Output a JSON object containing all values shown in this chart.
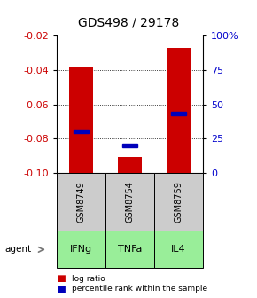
{
  "title": "GDS498 / 29178",
  "samples": [
    "GSM8749",
    "GSM8754",
    "GSM8759"
  ],
  "agents": [
    "IFNg",
    "TNFa",
    "IL4"
  ],
  "log_ratios": [
    -0.038,
    -0.091,
    -0.027
  ],
  "percentile_ranks_pct": [
    30,
    20,
    43
  ],
  "ylim_left": [
    -0.1,
    -0.02
  ],
  "ylim_right": [
    0,
    100
  ],
  "left_ticks": [
    -0.1,
    -0.08,
    -0.06,
    -0.04,
    -0.02
  ],
  "right_ticks": [
    0,
    25,
    50,
    75,
    100
  ],
  "right_tick_labels": [
    "0",
    "25",
    "50",
    "75",
    "100%"
  ],
  "bar_color": "#cc0000",
  "marker_color": "#0000bb",
  "bar_width": 0.5,
  "sample_box_color": "#cccccc",
  "agent_box_color": "#99ee99",
  "title_fontsize": 10,
  "tick_fontsize": 8,
  "label_fontsize": 7.5,
  "legend_fontsize": 7
}
